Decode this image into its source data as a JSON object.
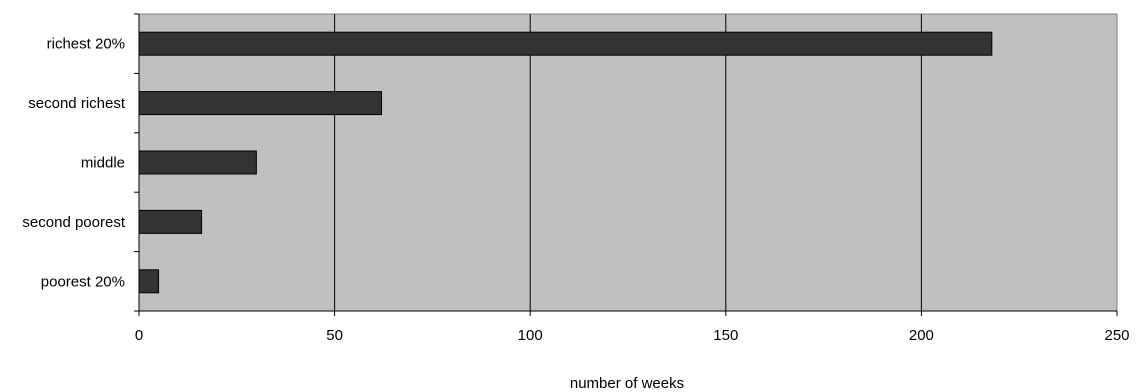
{
  "chart_data": {
    "type": "bar",
    "orientation": "horizontal",
    "categories": [
      "richest 20%",
      "second richest",
      "middle",
      "second poorest",
      "poorest 20%"
    ],
    "values": [
      218,
      62,
      30,
      16,
      5
    ],
    "title": "",
    "xlabel": "number of weeks",
    "ylabel": "",
    "xlim": [
      0,
      250
    ],
    "xticks": [
      0,
      50,
      100,
      150,
      200,
      250
    ],
    "grid": "vertical",
    "legend": "none",
    "colors": {
      "plot_background": "#c0c0c0",
      "bar_fill": "#333333",
      "bar_stroke": "#000000",
      "grid": "#000000"
    }
  }
}
